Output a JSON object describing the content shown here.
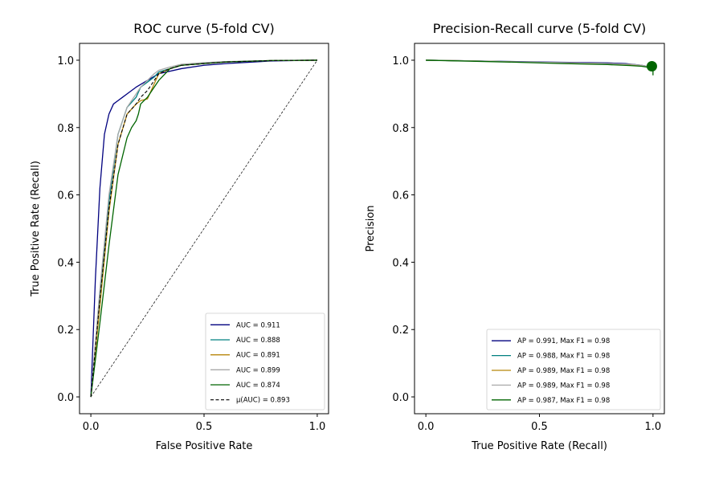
{
  "chart_data": [
    {
      "type": "line",
      "title": "ROC curve (5-fold CV)",
      "xlabel": "False Positive Rate",
      "ylabel": "True Positive Rate (Recall)",
      "xlim": [
        -0.05,
        1.05
      ],
      "ylim": [
        -0.05,
        1.05
      ],
      "xticks": [
        0.0,
        0.5,
        1.0
      ],
      "xtick_labels": [
        "0.0",
        "0.5",
        "1.0"
      ],
      "yticks": [
        0.0,
        0.2,
        0.4,
        0.6,
        0.8,
        1.0
      ],
      "ytick_labels": [
        "0.0",
        "0.2",
        "0.4",
        "0.6",
        "0.8",
        "1.0"
      ],
      "legend_position": "lower-right",
      "series": [
        {
          "name": "AUC = 0.911",
          "color": "#00007f",
          "style": "solid",
          "x": [
            0,
            0.02,
            0.04,
            0.06,
            0.08,
            0.1,
            0.12,
            0.14,
            0.16,
            0.2,
            0.25,
            0.3,
            0.4,
            0.5,
            0.6,
            0.8,
            1.0
          ],
          "y": [
            0,
            0.35,
            0.62,
            0.78,
            0.84,
            0.87,
            0.88,
            0.89,
            0.9,
            0.92,
            0.94,
            0.96,
            0.975,
            0.985,
            0.99,
            0.998,
            1.0
          ]
        },
        {
          "name": "AUC = 0.888",
          "color": "#008080",
          "style": "solid",
          "x": [
            0,
            0.04,
            0.08,
            0.12,
            0.16,
            0.2,
            0.22,
            0.25,
            0.28,
            0.3,
            0.35,
            0.4,
            0.5,
            0.6,
            0.8,
            1.0
          ],
          "y": [
            0,
            0.3,
            0.58,
            0.78,
            0.86,
            0.89,
            0.92,
            0.935,
            0.95,
            0.965,
            0.975,
            0.985,
            0.99,
            0.995,
            0.999,
            1.0
          ]
        },
        {
          "name": "AUC = 0.891",
          "color": "#b8860b",
          "style": "solid",
          "x": [
            0,
            0.04,
            0.08,
            0.12,
            0.16,
            0.2,
            0.22,
            0.25,
            0.28,
            0.3,
            0.35,
            0.4,
            0.5,
            0.6,
            0.8,
            1.0
          ],
          "y": [
            0,
            0.27,
            0.55,
            0.75,
            0.84,
            0.87,
            0.88,
            0.885,
            0.93,
            0.96,
            0.975,
            0.985,
            0.99,
            0.995,
            0.999,
            1.0
          ]
        },
        {
          "name": "AUC = 0.899",
          "color": "#a9a9a9",
          "style": "solid",
          "x": [
            0,
            0.04,
            0.08,
            0.12,
            0.16,
            0.2,
            0.22,
            0.25,
            0.28,
            0.3,
            0.35,
            0.4,
            0.5,
            0.6,
            0.8,
            1.0
          ],
          "y": [
            0,
            0.32,
            0.6,
            0.78,
            0.86,
            0.9,
            0.92,
            0.94,
            0.96,
            0.97,
            0.98,
            0.988,
            0.993,
            0.996,
            0.999,
            1.0
          ]
        },
        {
          "name": "AUC = 0.874",
          "color": "#006400",
          "style": "solid",
          "x": [
            0,
            0.04,
            0.08,
            0.12,
            0.16,
            0.18,
            0.2,
            0.21,
            0.22,
            0.25,
            0.27,
            0.3,
            0.35,
            0.4,
            0.5,
            0.6,
            0.8,
            1.0
          ],
          "y": [
            0,
            0.22,
            0.45,
            0.66,
            0.77,
            0.8,
            0.82,
            0.84,
            0.87,
            0.89,
            0.91,
            0.94,
            0.975,
            0.985,
            0.99,
            0.995,
            0.999,
            1.0
          ]
        },
        {
          "name": "$\\mu$(AUC) = 0.893",
          "label": "μ(AUC) = 0.893",
          "color": "#000000",
          "style": "dashed",
          "x": [
            0,
            0.04,
            0.08,
            0.12,
            0.16,
            0.2,
            0.22,
            0.25,
            0.28,
            0.3,
            0.35,
            0.4,
            0.5,
            0.6,
            0.8,
            1.0
          ],
          "y": [
            0,
            0.29,
            0.56,
            0.75,
            0.84,
            0.87,
            0.89,
            0.91,
            0.94,
            0.96,
            0.975,
            0.985,
            0.99,
            0.995,
            0.999,
            1.0
          ]
        }
      ],
      "reference_line": {
        "x": [
          0,
          1
        ],
        "y": [
          0,
          1
        ],
        "color": "#000000",
        "style": "dashed"
      }
    },
    {
      "type": "line",
      "title": "Precision-Recall curve (5-fold CV)",
      "xlabel": "True Positive Rate (Recall)",
      "ylabel": "Precision",
      "xlim": [
        -0.05,
        1.05
      ],
      "ylim": [
        -0.05,
        1.05
      ],
      "xticks": [
        0.0,
        0.5,
        1.0
      ],
      "xtick_labels": [
        "0.0",
        "0.5",
        "1.0"
      ],
      "yticks": [
        0.0,
        0.2,
        0.4,
        0.6,
        0.8,
        1.0
      ],
      "ytick_labels": [
        "0.0",
        "0.2",
        "0.4",
        "0.6",
        "0.8",
        "1.0"
      ],
      "legend_position": "lower-right",
      "series": [
        {
          "name": "AP = 0.991, Max F1 = 0.98",
          "color": "#00007f",
          "style": "solid",
          "x": [
            0,
            0.2,
            0.4,
            0.6,
            0.8,
            0.88,
            0.95,
            0.99,
            1.0
          ],
          "y": [
            1.0,
            0.998,
            0.996,
            0.994,
            0.992,
            0.99,
            0.985,
            0.98,
            0.975
          ]
        },
        {
          "name": "AP = 0.988, Max F1 = 0.98",
          "color": "#008080",
          "style": "solid",
          "x": [
            0,
            0.2,
            0.4,
            0.6,
            0.8,
            0.9,
            0.95,
            0.99,
            1.0
          ],
          "y": [
            1.0,
            0.998,
            0.995,
            0.992,
            0.99,
            0.987,
            0.984,
            0.98,
            0.972
          ]
        },
        {
          "name": "AP = 0.989, Max F1 = 0.98",
          "color": "#b8860b",
          "style": "solid",
          "x": [
            0,
            0.2,
            0.4,
            0.6,
            0.8,
            0.9,
            0.95,
            0.99,
            1.0
          ],
          "y": [
            1.0,
            0.998,
            0.995,
            0.992,
            0.99,
            0.987,
            0.984,
            0.98,
            0.97
          ]
        },
        {
          "name": "AP = 0.989, Max F1 = 0.98",
          "color": "#a9a9a9",
          "style": "solid",
          "x": [
            0,
            0.2,
            0.4,
            0.6,
            0.8,
            0.9,
            0.95,
            0.99,
            1.0
          ],
          "y": [
            1.0,
            0.998,
            0.995,
            0.993,
            0.99,
            0.988,
            0.985,
            0.98,
            0.974
          ]
        },
        {
          "name": "AP = 0.987, Max F1 = 0.98",
          "color": "#006400",
          "style": "solid",
          "x": [
            0,
            0.2,
            0.4,
            0.6,
            0.8,
            0.9,
            0.95,
            0.99,
            1.0,
            1.0
          ],
          "y": [
            1.0,
            0.997,
            0.994,
            0.99,
            0.987,
            0.984,
            0.982,
            0.978,
            0.97,
            0.955
          ]
        }
      ],
      "max_f1_point": {
        "x": 0.995,
        "y": 0.982,
        "color": "#006400"
      }
    }
  ]
}
